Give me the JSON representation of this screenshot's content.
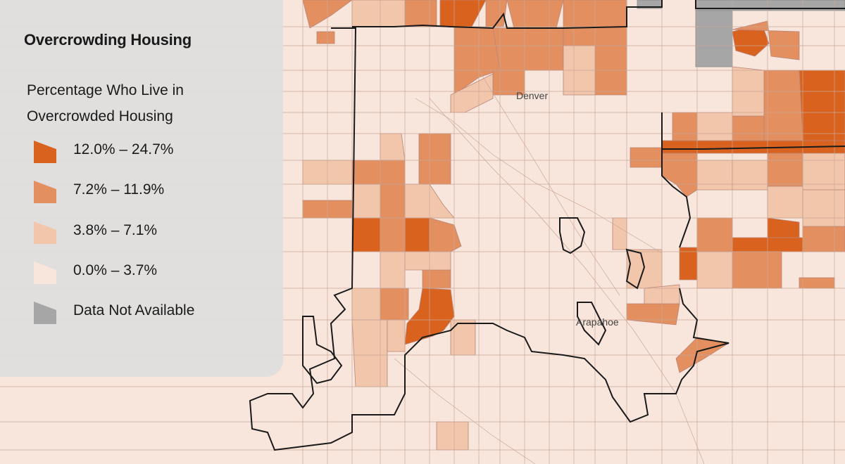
{
  "legend": {
    "title": "Overcrowding Housing",
    "subtitle": "Percentage Who Live in Overcrowded Housing",
    "items": [
      {
        "label": "12.0% – 24.7%",
        "color": "#d9621e"
      },
      {
        "label": "7.2% – 11.9%",
        "color": "#e38f5f"
      },
      {
        "label": "3.8% – 7.1%",
        "color": "#f1c6ab"
      },
      {
        "label": "0.0% – 3.7%",
        "color": "#f8e6dc"
      },
      {
        "label": "Data Not Available",
        "color": "#a6a6a6"
      }
    ]
  },
  "map": {
    "labels": [
      "Denver",
      "Arapahoe"
    ],
    "colors": {
      "background": "#f8e6dc",
      "boundary": "#1a1a1a",
      "tract_line": "#c9a898"
    }
  }
}
